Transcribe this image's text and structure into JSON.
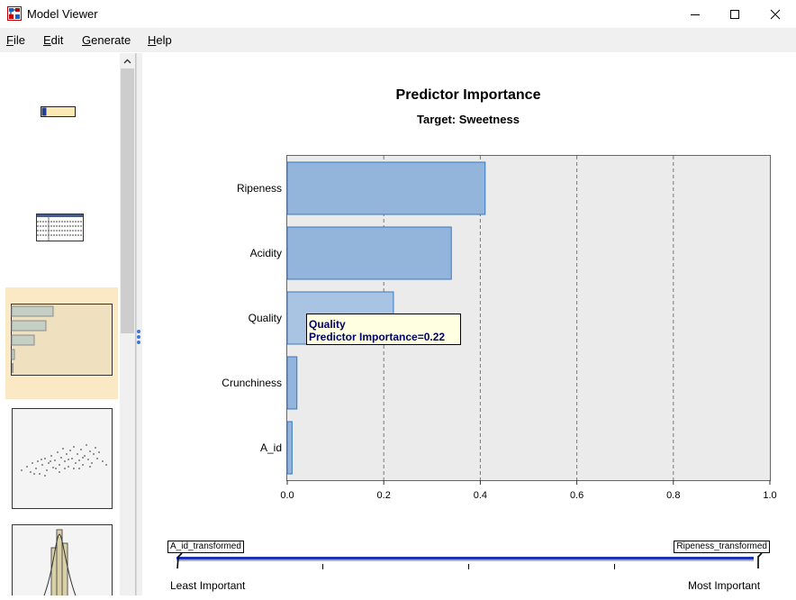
{
  "window": {
    "title": "Model Viewer"
  },
  "menu": [
    {
      "label": "File",
      "underline": "F",
      "rest": "ile"
    },
    {
      "label": "Edit",
      "underline": "E",
      "rest": "dit"
    },
    {
      "label": "Generate",
      "underline": "G",
      "rest": "enerate"
    },
    {
      "label": "Help",
      "underline": "H",
      "rest": "elp"
    }
  ],
  "chart_data": {
    "type": "bar",
    "orientation": "horizontal",
    "title": "Predictor Importance",
    "subtitle": "Target: Sweetness",
    "categories": [
      "Ripeness",
      "Acidity",
      "Quality",
      "Crunchiness",
      "A_id"
    ],
    "values": [
      0.41,
      0.34,
      0.22,
      0.02,
      0.01
    ],
    "xlim": [
      0,
      1.0
    ],
    "xticks": [
      "0.0",
      "0.2",
      "0.4",
      "0.6",
      "0.8",
      "1.0"
    ],
    "grid": true,
    "bar_color": "#93b5dc",
    "highlight_color": "#a9c4e3",
    "bar_edge": "#3a77c2",
    "plot_background": "#ebebeb"
  },
  "tooltip": {
    "line1": "Quality",
    "line2": "Predictor Importance=0.22"
  },
  "importance_slider": {
    "left_box": "A_id_transformed",
    "right_box": "Ripeness_transformed",
    "left_label": "Least Important",
    "right_label": "Most Important"
  }
}
